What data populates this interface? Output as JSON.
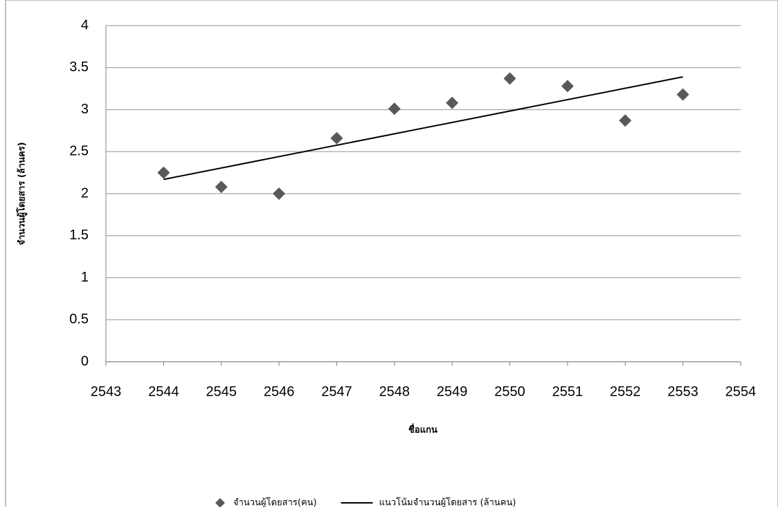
{
  "chart_data": {
    "type": "scatter",
    "x_label": "ชื่อแกน",
    "y_label": "จำนวนผู้โดยสาร (ล้านคร)",
    "xlim": [
      2543,
      2554
    ],
    "xticks": [
      2543,
      2544,
      2545,
      2546,
      2547,
      2548,
      2549,
      2550,
      2551,
      2552,
      2553,
      2554
    ],
    "ylim": [
      0,
      4
    ],
    "yticks": [
      0,
      0.5,
      1,
      1.5,
      2,
      2.5,
      3,
      3.5,
      4
    ],
    "grid": true,
    "legend": "bottom",
    "series": [
      {
        "name": "จำนวนผู้โดยสาร(คน)",
        "type": "scatter",
        "color": "#595959",
        "x": [
          2544,
          2545,
          2546,
          2547,
          2548,
          2549,
          2550,
          2551,
          2552,
          2553
        ],
        "values": [
          2.25,
          2.08,
          2.0,
          2.66,
          3.01,
          3.08,
          3.37,
          3.28,
          2.87,
          3.18
        ]
      },
      {
        "name": "แนวโน้มจำนวนผู้โดยสาร (ล้านคน)",
        "type": "line",
        "color": "#000000",
        "x": [
          2544,
          2553
        ],
        "values": [
          2.17,
          3.39
        ]
      }
    ]
  }
}
